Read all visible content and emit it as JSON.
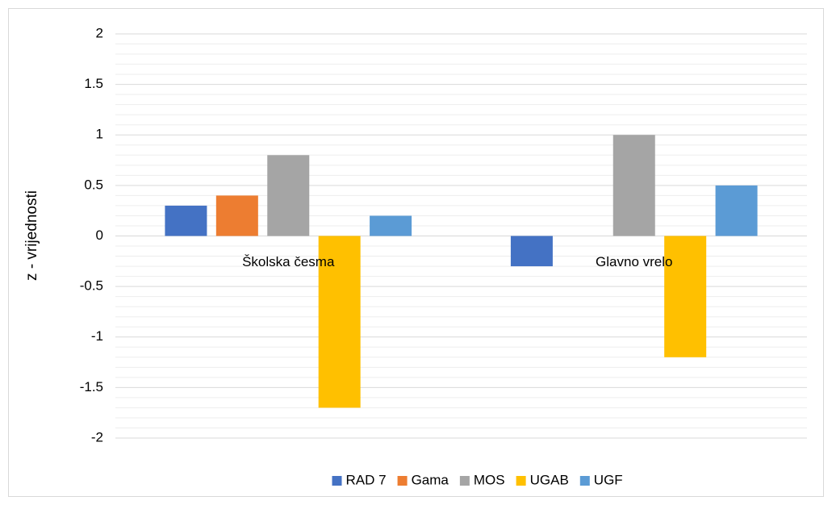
{
  "chart_data": {
    "type": "bar",
    "y_label": "z - vrijednosti",
    "categories": [
      "Školska česma",
      "Glavno vrelo"
    ],
    "series": [
      {
        "name": "RAD 7",
        "color": "#4472c4",
        "values": [
          0.3,
          -0.3
        ]
      },
      {
        "name": "Gama",
        "color": "#ed7d31",
        "values": [
          0.4,
          0
        ]
      },
      {
        "name": "MOS",
        "color": "#a5a5a5",
        "values": [
          0.8,
          1
        ]
      },
      {
        "name": "UGAB",
        "color": "#ffc000",
        "values": [
          -1.7,
          -1.2
        ]
      },
      {
        "name": "UGF",
        "color": "#5b9bd5",
        "values": [
          0.2,
          0.5
        ]
      }
    ],
    "ylim": [
      -2,
      2
    ],
    "yticks": [
      -2,
      -1.5,
      -1,
      -0.5,
      0,
      0.5,
      1,
      1.5,
      2
    ],
    "grid": true,
    "minor_grid": true,
    "legend": "bottom"
  }
}
